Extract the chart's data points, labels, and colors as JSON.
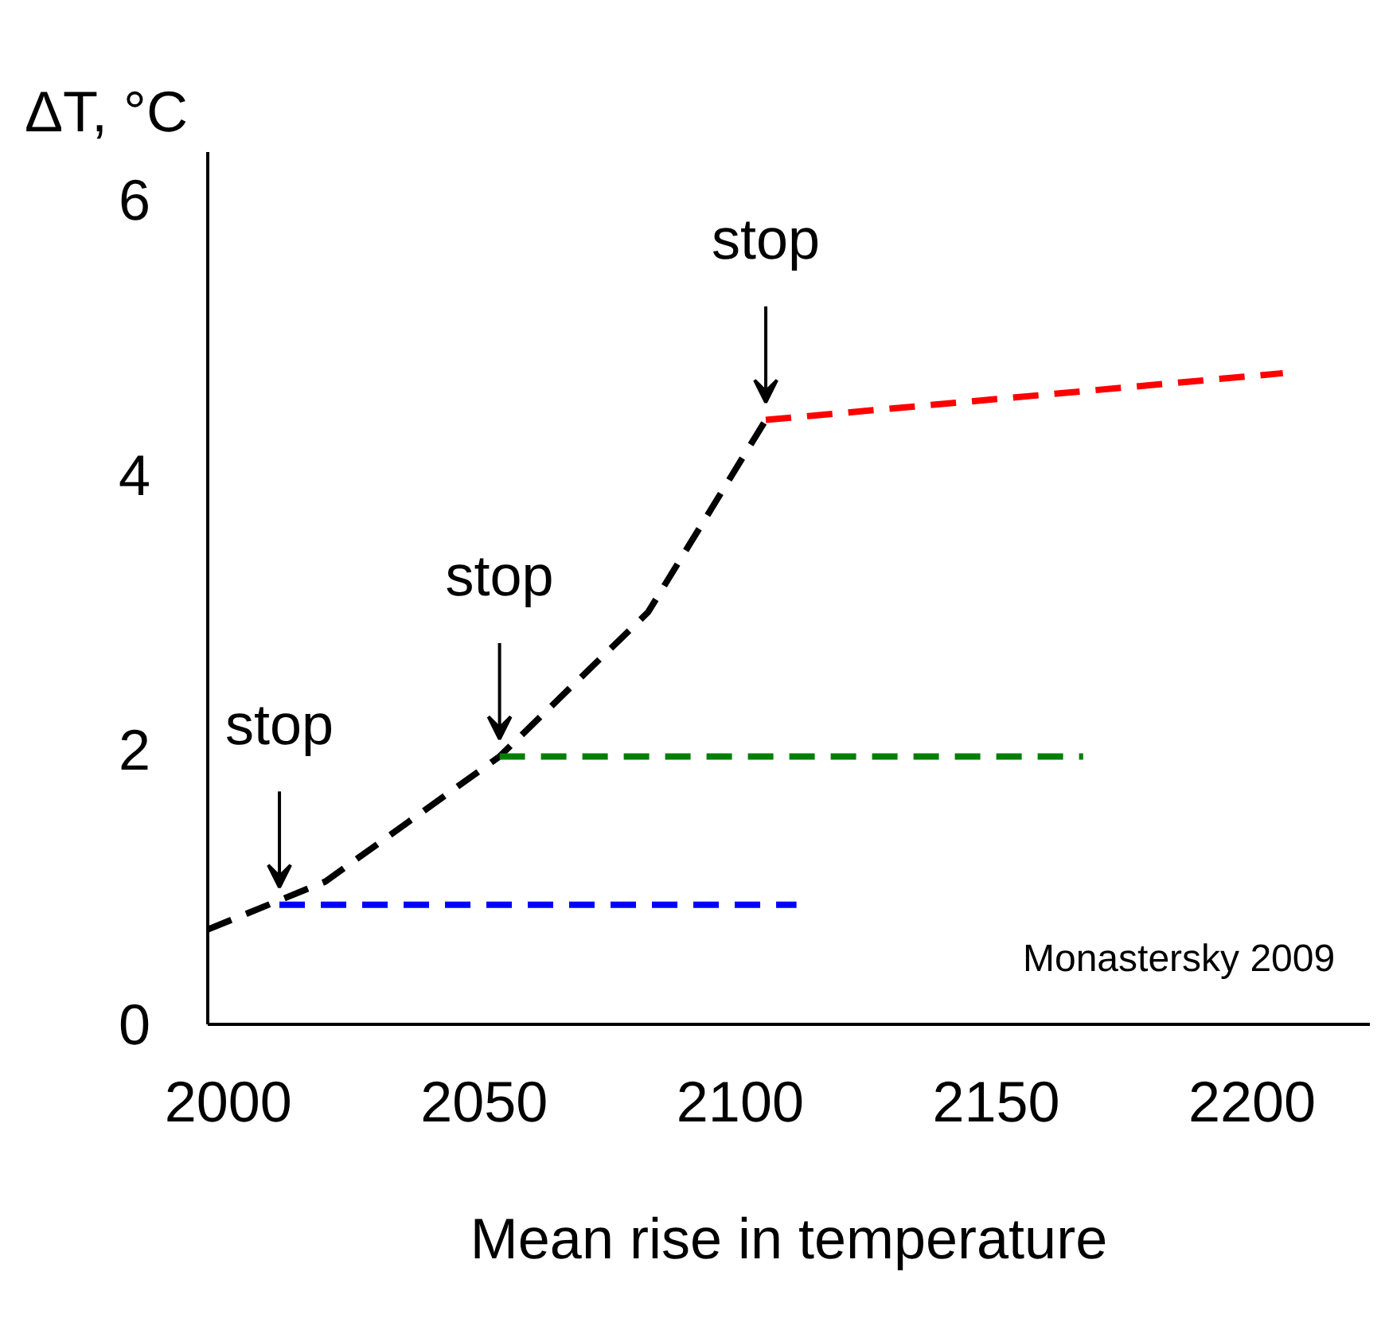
{
  "chart_data": {
    "type": "line",
    "ylabel": "ΔT, °C",
    "xlabel": "Mean rise in temperature",
    "xlim": [
      1996,
      2223
    ],
    "ylim": [
      0,
      6.35
    ],
    "xticks": [
      2000,
      2050,
      2100,
      2150,
      2200
    ],
    "yticks": [
      0,
      2,
      4,
      6
    ],
    "grid": false,
    "marker": "none",
    "line_style": "dashed",
    "series": [
      {
        "color": "#000000",
        "x": [
          1996,
          2019,
          2053,
          2082,
          2105
        ],
        "values": [
          0.69,
          1.04,
          1.95,
          3.0,
          4.4
        ]
      },
      {
        "color": "#0000ff",
        "x": [
          2010,
          2111
        ],
        "values": [
          0.87,
          0.87
        ]
      },
      {
        "color": "#008000",
        "x": [
          2053,
          2167
        ],
        "values": [
          1.95,
          1.95
        ]
      },
      {
        "color": "#ff0000",
        "x": [
          2105,
          2206
        ],
        "values": [
          4.4,
          4.74
        ]
      }
    ],
    "annotations": [
      {
        "text": "stop",
        "x": 2010,
        "y": 0.87
      },
      {
        "text": "stop",
        "x": 2053,
        "y": 1.95
      },
      {
        "text": "stop",
        "x": 2105,
        "y": 4.4
      },
      "Monastersky 2009"
    ]
  }
}
